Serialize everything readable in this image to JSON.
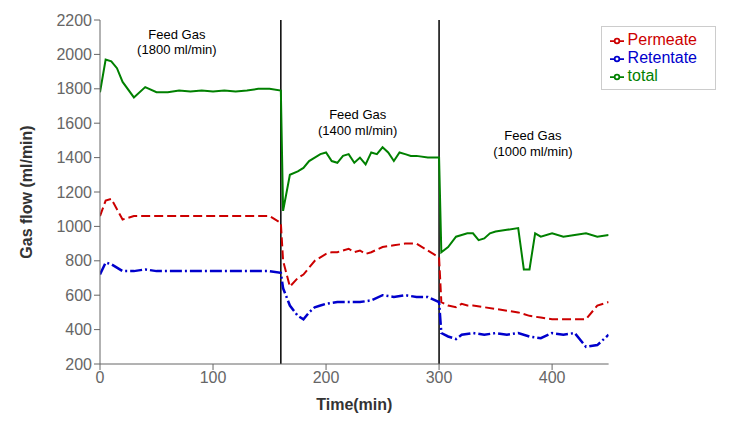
{
  "chart_data": {
    "type": "line",
    "title": "",
    "xlabel": "Time(min)",
    "ylabel": "Gas flow (ml/min)",
    "xlim": [
      0,
      450
    ],
    "ylim": [
      200,
      2200
    ],
    "xticks": [
      0,
      100,
      200,
      300,
      400
    ],
    "yticks": [
      200,
      400,
      600,
      800,
      1000,
      1200,
      1400,
      1600,
      1800,
      2000,
      2200
    ],
    "grid": false,
    "legend": "upper right",
    "vlines": [
      160,
      300
    ],
    "annotations": [
      {
        "text": "Feed Gas\n(1800 ml/min)",
        "x": 68,
        "y": 2150
      },
      {
        "text": "Feed Gas\n(1400 ml/min)",
        "x": 228,
        "y": 1680
      },
      {
        "text": "Feed Gas\n(1000 ml/min)",
        "x": 383,
        "y": 1560
      }
    ],
    "series": [
      {
        "name": "total",
        "color": "#008000",
        "line_style": "solid",
        "x": [
          0,
          5,
          10,
          15,
          20,
          30,
          40,
          50,
          60,
          70,
          80,
          90,
          100,
          110,
          120,
          130,
          140,
          150,
          160,
          162,
          168,
          175,
          180,
          185,
          190,
          195,
          200,
          205,
          210,
          215,
          220,
          225,
          230,
          235,
          240,
          245,
          250,
          255,
          260,
          265,
          270,
          275,
          280,
          290,
          300,
          302,
          308,
          315,
          320,
          325,
          330,
          335,
          340,
          345,
          350,
          360,
          370,
          375,
          380,
          385,
          390,
          400,
          410,
          420,
          430,
          440,
          450
        ],
        "values": [
          1780,
          1970,
          1960,
          1920,
          1840,
          1750,
          1810,
          1780,
          1780,
          1790,
          1785,
          1790,
          1785,
          1790,
          1785,
          1790,
          1800,
          1800,
          1790,
          1090,
          1300,
          1320,
          1340,
          1380,
          1400,
          1420,
          1430,
          1380,
          1370,
          1410,
          1420,
          1370,
          1400,
          1360,
          1430,
          1420,
          1460,
          1430,
          1380,
          1430,
          1420,
          1410,
          1410,
          1400,
          1400,
          850,
          880,
          940,
          950,
          960,
          960,
          920,
          930,
          960,
          970,
          980,
          990,
          750,
          750,
          960,
          940,
          960,
          940,
          950,
          960,
          940,
          950
        ]
      },
      {
        "name": "Permeate",
        "color": "#cc0000",
        "line_style": "dashed",
        "x": [
          0,
          5,
          10,
          20,
          30,
          40,
          50,
          60,
          70,
          80,
          90,
          100,
          110,
          120,
          130,
          140,
          150,
          160,
          162,
          168,
          175,
          180,
          185,
          190,
          195,
          200,
          205,
          210,
          215,
          220,
          225,
          230,
          235,
          240,
          250,
          260,
          270,
          280,
          290,
          300,
          302,
          308,
          315,
          320,
          325,
          330,
          340,
          350,
          360,
          370,
          380,
          390,
          400,
          410,
          420,
          430,
          440,
          450
        ],
        "values": [
          1060,
          1150,
          1160,
          1040,
          1060,
          1060,
          1060,
          1060,
          1060,
          1060,
          1060,
          1060,
          1060,
          1060,
          1060,
          1060,
          1060,
          1020,
          800,
          650,
          700,
          720,
          760,
          800,
          820,
          840,
          850,
          850,
          860,
          870,
          850,
          860,
          840,
          850,
          880,
          890,
          900,
          900,
          860,
          820,
          560,
          540,
          530,
          550,
          540,
          540,
          530,
          520,
          510,
          500,
          480,
          470,
          460,
          460,
          460,
          460,
          540,
          560
        ]
      },
      {
        "name": "Retentate",
        "color": "#0000cc",
        "line_style": "dashdot",
        "x": [
          0,
          5,
          10,
          20,
          30,
          40,
          50,
          60,
          70,
          80,
          90,
          100,
          110,
          120,
          130,
          140,
          150,
          160,
          162,
          168,
          175,
          180,
          185,
          190,
          195,
          200,
          210,
          220,
          230,
          240,
          250,
          260,
          270,
          280,
          290,
          300,
          302,
          308,
          315,
          320,
          330,
          340,
          350,
          360,
          370,
          380,
          390,
          400,
          410,
          420,
          430,
          440,
          450
        ],
        "values": [
          720,
          790,
          780,
          740,
          740,
          750,
          740,
          740,
          740,
          740,
          740,
          740,
          740,
          740,
          740,
          740,
          740,
          730,
          640,
          540,
          480,
          460,
          500,
          530,
          540,
          550,
          560,
          560,
          560,
          570,
          600,
          590,
          600,
          590,
          590,
          560,
          380,
          360,
          345,
          370,
          380,
          370,
          380,
          370,
          380,
          360,
          350,
          380,
          370,
          380,
          300,
          310,
          370
        ]
      }
    ]
  }
}
